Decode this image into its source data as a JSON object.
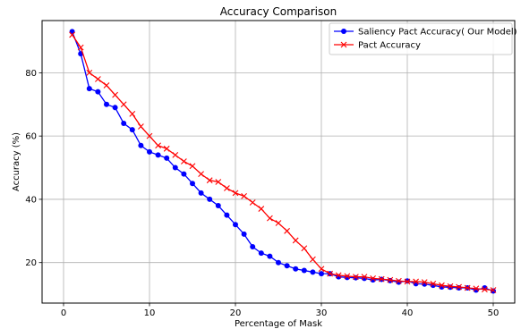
{
  "chart_data": {
    "type": "line",
    "title": "Accuracy Comparison",
    "xlabel": "Percentage of Mask",
    "ylabel": "Accuracy (%)",
    "xlim": [
      -2.5,
      52.5
    ],
    "ylim": [
      7.2,
      96.5
    ],
    "xticks": [
      0,
      10,
      20,
      30,
      40,
      50
    ],
    "yticks": [
      20,
      40,
      60,
      80
    ],
    "grid": true,
    "legend_position": "top-right",
    "x": [
      1,
      2,
      3,
      4,
      5,
      6,
      7,
      8,
      9,
      10,
      11,
      12,
      13,
      14,
      15,
      16,
      17,
      18,
      19,
      20,
      21,
      22,
      23,
      24,
      25,
      26,
      27,
      28,
      29,
      30,
      31,
      32,
      33,
      34,
      35,
      36,
      37,
      38,
      39,
      40,
      41,
      42,
      43,
      44,
      45,
      46,
      47,
      48,
      49,
      50
    ],
    "series": [
      {
        "name": "Saliency Pact Accuracy( Our Model)",
        "color": "#0000ff",
        "marker": "circle",
        "values": [
          93,
          86,
          75,
          74,
          70,
          69,
          64,
          62,
          57,
          55,
          54,
          53,
          50,
          48,
          45,
          42,
          40,
          38,
          35,
          32,
          29,
          25,
          23,
          22,
          20,
          19,
          18,
          17.5,
          17,
          16.5,
          16.5,
          15.5,
          15.3,
          15.2,
          15,
          14.5,
          14.7,
          14.3,
          13.8,
          14.2,
          13.3,
          13.2,
          12.8,
          12.3,
          12.2,
          12,
          12,
          11.3,
          12,
          11
        ]
      },
      {
        "name": "Pact Accuracy",
        "color": "#ff0000",
        "marker": "x",
        "values": [
          92,
          88,
          80,
          78,
          76,
          73,
          70,
          67,
          63,
          60,
          57,
          56,
          54,
          52,
          50.5,
          48,
          46,
          45.5,
          43.5,
          42,
          41,
          39,
          37,
          34,
          32.5,
          30,
          27,
          24.5,
          21,
          18,
          16.5,
          16,
          15.7,
          15.5,
          15.5,
          15,
          14.8,
          14.5,
          14.2,
          14,
          14,
          13.8,
          13.3,
          12.8,
          12.5,
          12.3,
          12,
          11.8,
          11.5,
          11.3
        ]
      }
    ]
  }
}
